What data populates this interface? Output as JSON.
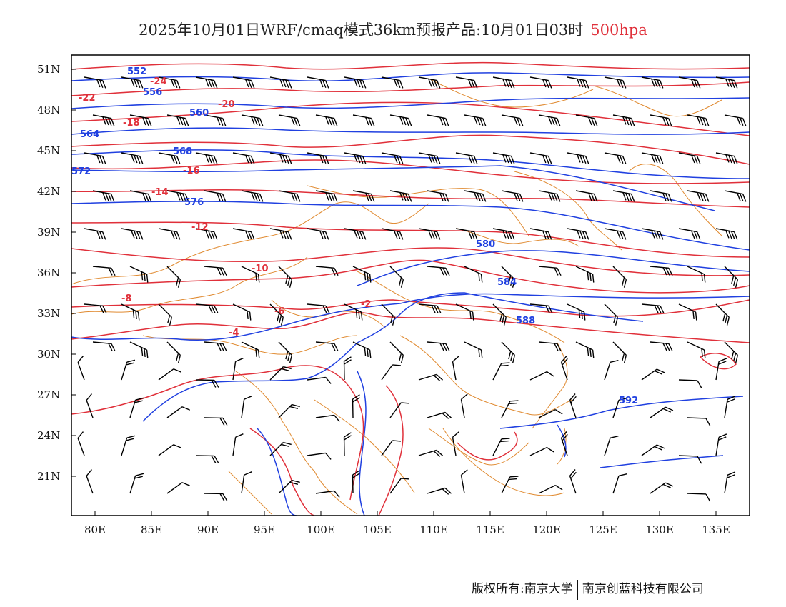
{
  "title": {
    "main": "2025年10月01日WRF/cmaq模式36km预报产品:10月01日03时",
    "level": "500hpa"
  },
  "axes": {
    "lat_labels": [
      "51N",
      "48N",
      "45N",
      "42N",
      "39N",
      "36N",
      "33N",
      "30N",
      "27N",
      "24N",
      "21N"
    ],
    "lon_labels": [
      "80E",
      "85E",
      "90E",
      "95E",
      "100E",
      "105E",
      "110E",
      "115E",
      "120E",
      "125E",
      "130E",
      "135E"
    ]
  },
  "colors": {
    "temperature": "#e0303a",
    "height": "#2040e0",
    "border": "#e08a30",
    "wind": "#000000"
  },
  "height_contours": [
    {
      "value": "552",
      "lat_lon": "51N 83E"
    },
    {
      "value": "556",
      "lat_lon": "49N 85E"
    },
    {
      "value": "560",
      "lat_lon": "48N 89E"
    },
    {
      "value": "564",
      "lat_lon": "46N 80E"
    },
    {
      "value": "568",
      "lat_lon": "45N 87E"
    },
    {
      "value": "572",
      "lat_lon": "43N 80E"
    },
    {
      "value": "576",
      "lat_lon": "41N 88E"
    },
    {
      "value": "580",
      "lat_lon": "37N 114E"
    },
    {
      "value": "584",
      "lat_lon": "34N 115E"
    },
    {
      "value": "588",
      "lat_lon": "32N 117E"
    },
    {
      "value": "592",
      "lat_lon": "26N 133E"
    }
  ],
  "temperature_contours": [
    {
      "value": "-24",
      "lat_lon": "50N 86E"
    },
    {
      "value": "-22",
      "lat_lon": "48N 80E"
    },
    {
      "value": "-20",
      "lat_lon": "48N 91E"
    },
    {
      "value": "-18",
      "lat_lon": "46N 85E"
    },
    {
      "value": "-16",
      "lat_lon": "43N 89E"
    },
    {
      "value": "-14",
      "lat_lon": "42N 86E"
    },
    {
      "value": "-12",
      "lat_lon": "39N 92E"
    },
    {
      "value": "-10",
      "lat_lon": "37N 95E"
    },
    {
      "value": "-8",
      "lat_lon": "35N 98E"
    },
    {
      "value": "-6",
      "lat_lon": "33N 99E"
    },
    {
      "value": "-4",
      "lat_lon": "31N 94E"
    },
    {
      "value": "-2",
      "lat_lon": "33N 104E"
    }
  ],
  "footer": {
    "left": "版权所有:南京大学",
    "right": "南京创蓝科技有限公司"
  }
}
